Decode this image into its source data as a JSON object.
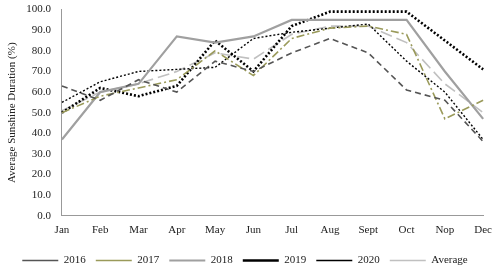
{
  "chart_data": {
    "type": "line",
    "y_label": "Average Sunshine Duration (%)",
    "categories": [
      "Jan",
      "Feb",
      "Mar",
      "Apr",
      "May",
      "Jun",
      "Jul",
      "Aug",
      "Sept",
      "Oct",
      "Nop",
      "Dec"
    ],
    "series": [
      {
        "name": "2016",
        "color": "#555555",
        "line_style": "dashed",
        "values": [
          63,
          56,
          66,
          60,
          75,
          70,
          79,
          86,
          79,
          61,
          56,
          36
        ]
      },
      {
        "name": "2017",
        "color": "#9a9a5a",
        "line_style": "dashdot",
        "values": [
          50,
          58,
          62,
          66,
          80,
          68,
          86,
          91,
          92,
          88,
          47,
          56
        ]
      },
      {
        "name": "2018",
        "color": "#a0a0a0",
        "line_style": "solid",
        "values": [
          37,
          60,
          64,
          87,
          84,
          87,
          95,
          95,
          95,
          95,
          70,
          47
        ]
      },
      {
        "name": "2019",
        "color": "#000000",
        "line_style": "dotted",
        "values": [
          50,
          62,
          58,
          63,
          85,
          70,
          92,
          99,
          99,
          99,
          85,
          71
        ]
      },
      {
        "name": "2020",
        "color": "#000000",
        "line_style": "dotted",
        "values": [
          55,
          65,
          70,
          71,
          72,
          86,
          89,
          91,
          93,
          75,
          60,
          37
        ]
      },
      {
        "name": "Average",
        "color": "#c0c0c0",
        "line_style": "longdash",
        "values": [
          51,
          60,
          64,
          70,
          79,
          76,
          88,
          92,
          92,
          84,
          64,
          50
        ]
      }
    ],
    "ylim": [
      0,
      100
    ],
    "yticks": [
      {
        "value": 0,
        "label": "0.0"
      },
      {
        "value": 10,
        "label": "10.0"
      },
      {
        "value": 20,
        "label": "20.0"
      },
      {
        "value": 30,
        "label": "30.0"
      },
      {
        "value": 40,
        "label": "40.0"
      },
      {
        "value": 50,
        "label": "50.0"
      },
      {
        "value": 60,
        "label": "60.0"
      },
      {
        "value": 70,
        "label": "70.0"
      },
      {
        "value": 80,
        "label": "80.0"
      },
      {
        "value": 90,
        "label": "90.0"
      },
      {
        "value": 100,
        "label": "100.0"
      }
    ],
    "grid": false,
    "legend": "bottom"
  }
}
